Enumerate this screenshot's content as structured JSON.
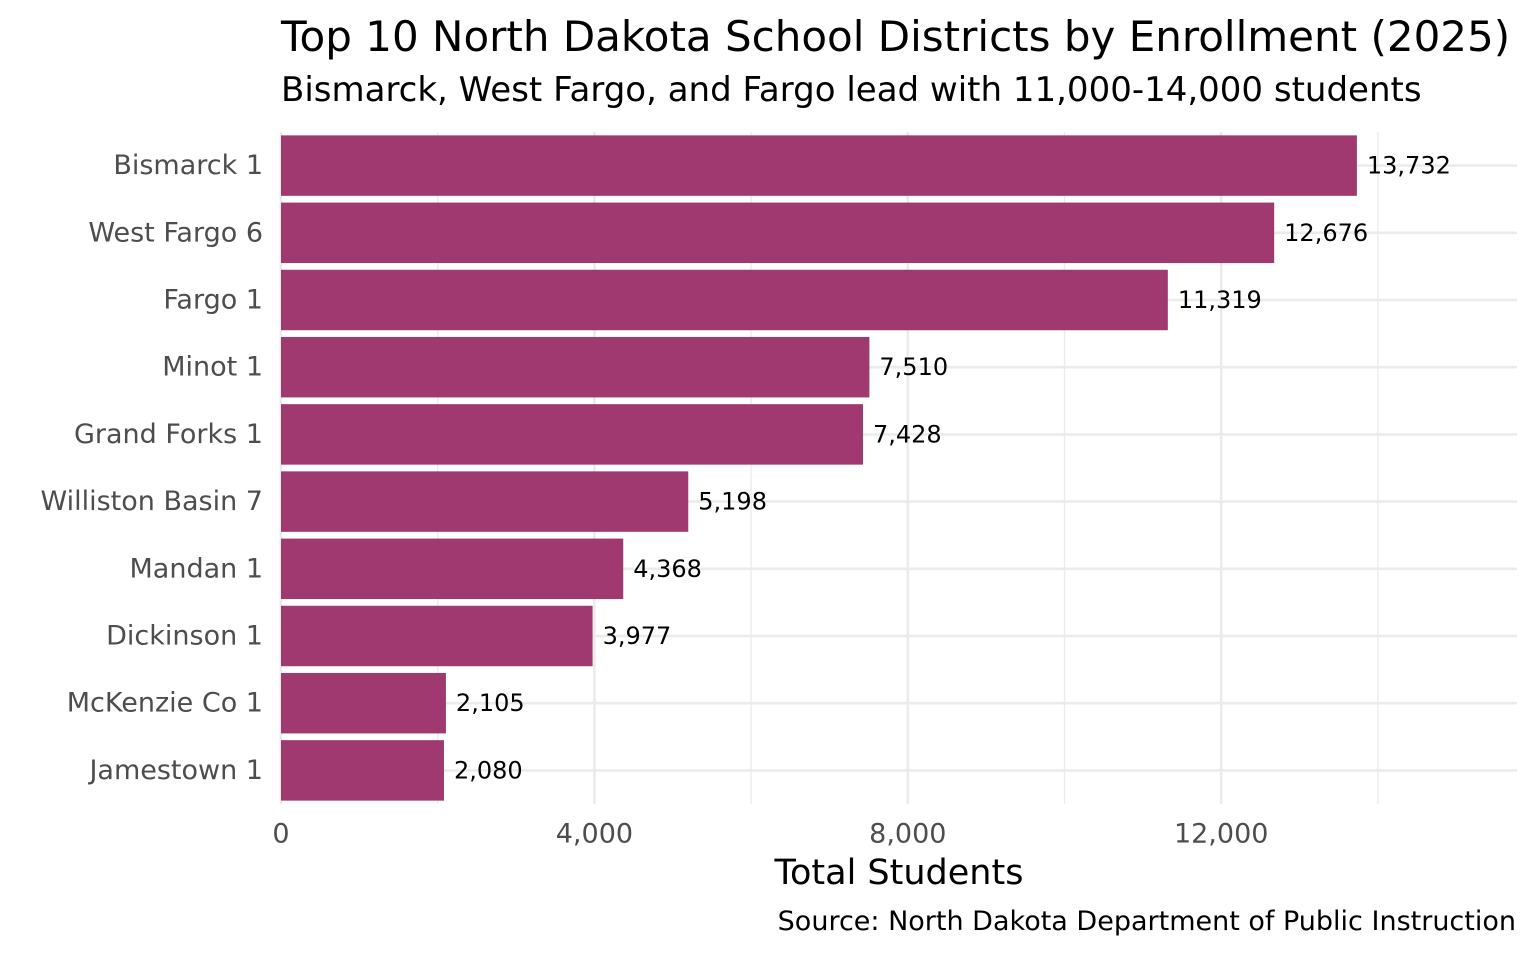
{
  "chart_data": {
    "type": "bar",
    "orientation": "horizontal",
    "title": "Top 10 North Dakota School Districts by Enrollment (2025)",
    "subtitle": "Bismarck, West Fargo, and Fargo lead with 11,000-14,000 students",
    "caption": "Source: North Dakota Department of Public Instruction",
    "xlabel": "Total Students",
    "ylabel": "",
    "categories": [
      "Bismarck 1",
      "West Fargo 6",
      "Fargo 1",
      "Minot 1",
      "Grand Forks 1",
      "Williston Basin 7",
      "Mandan 1",
      "Dickinson 1",
      "McKenzie Co 1",
      "Jamestown 1"
    ],
    "values": [
      13732,
      12676,
      11319,
      7510,
      7428,
      5198,
      4368,
      3977,
      2105,
      2080
    ],
    "value_labels": [
      "13,732",
      "12,676",
      "11,319",
      "7,510",
      "7,428",
      "5,198",
      "4,368",
      "3,977",
      "2,105",
      "2,080"
    ],
    "xlim": [
      0,
      15800
    ],
    "x_ticks": [
      0,
      4000,
      8000,
      12000
    ],
    "x_tick_labels": [
      "0",
      "4,000",
      "8,000",
      "12,000"
    ],
    "x_minor_ticks": [
      2000,
      6000,
      10000,
      14000
    ],
    "grid": true,
    "legend": "none",
    "colors": {
      "bar": "#A0396F",
      "grid": "#EBEBEB",
      "axis_text": "#4D4D4D",
      "text": "#000000"
    }
  }
}
